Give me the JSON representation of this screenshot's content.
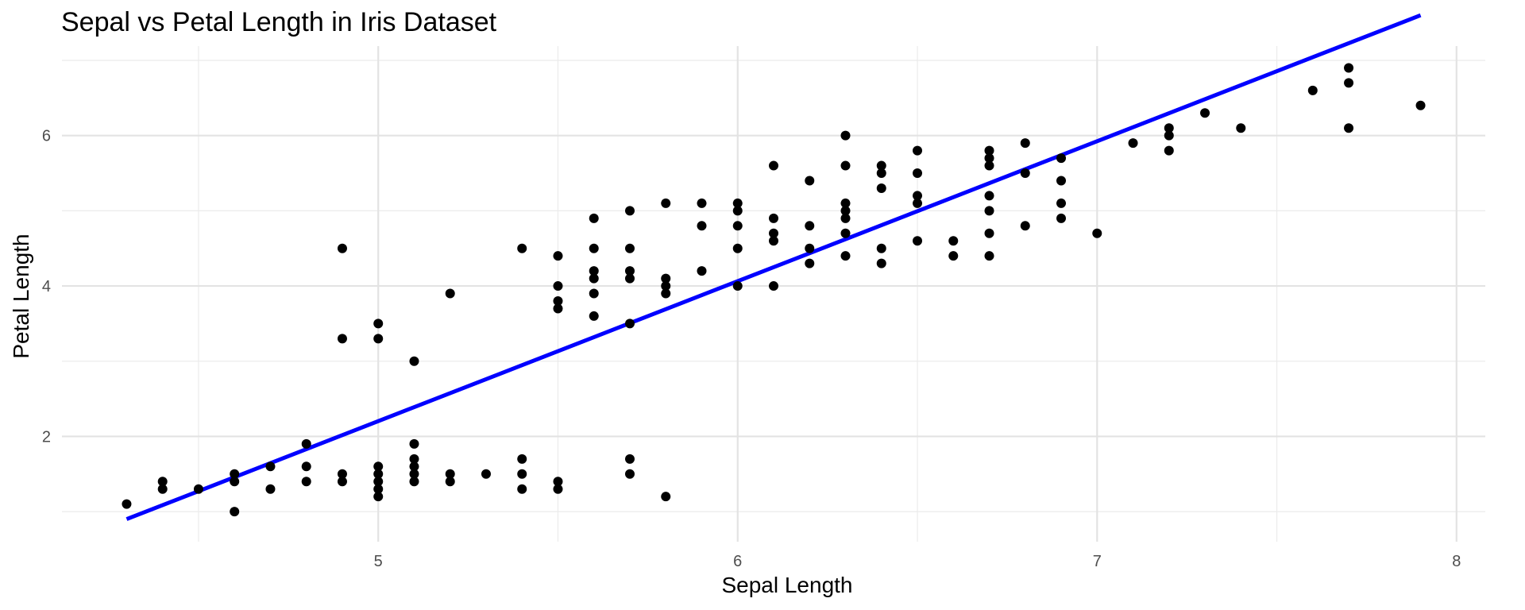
{
  "chart_data": {
    "type": "scatter",
    "title": "Sepal vs Petal Length in Iris Dataset",
    "xlabel": "Sepal Length",
    "ylabel": "Petal Length",
    "xlim": [
      4.12,
      8.08
    ],
    "ylim": [
      0.6,
      7.19
    ],
    "x_ticks": [
      5,
      6,
      7,
      8
    ],
    "x_minor_ticks": [
      4.5,
      5.5,
      6.5,
      7.5
    ],
    "y_ticks": [
      2,
      4,
      6
    ],
    "y_minor_ticks": [
      1,
      3,
      5,
      7
    ],
    "grid": true,
    "point_color": "#000000",
    "fit_line_color": "#0000ff",
    "fit_line": {
      "x": [
        4.3,
        7.9
      ],
      "y": [
        0.9,
        7.6
      ]
    },
    "points": [
      [
        4.3,
        1.1
      ],
      [
        4.4,
        1.4
      ],
      [
        4.4,
        1.3
      ],
      [
        4.5,
        1.3
      ],
      [
        4.6,
        1.5
      ],
      [
        4.6,
        1.4
      ],
      [
        4.6,
        1.0
      ],
      [
        4.7,
        1.6
      ],
      [
        4.7,
        1.3
      ],
      [
        4.8,
        1.9
      ],
      [
        4.8,
        1.6
      ],
      [
        4.8,
        1.4
      ],
      [
        4.9,
        4.5
      ],
      [
        4.9,
        3.3
      ],
      [
        4.9,
        1.5
      ],
      [
        4.9,
        1.4
      ],
      [
        5.0,
        3.5
      ],
      [
        5.0,
        3.3
      ],
      [
        5.0,
        1.6
      ],
      [
        5.0,
        1.5
      ],
      [
        5.0,
        1.4
      ],
      [
        5.0,
        1.3
      ],
      [
        5.0,
        1.2
      ],
      [
        5.1,
        3.0
      ],
      [
        5.1,
        1.9
      ],
      [
        5.1,
        1.7
      ],
      [
        5.1,
        1.6
      ],
      [
        5.1,
        1.5
      ],
      [
        5.1,
        1.4
      ],
      [
        5.2,
        3.9
      ],
      [
        5.2,
        1.5
      ],
      [
        5.2,
        1.4
      ],
      [
        5.3,
        1.5
      ],
      [
        5.4,
        4.5
      ],
      [
        5.4,
        1.7
      ],
      [
        5.4,
        1.5
      ],
      [
        5.4,
        1.3
      ],
      [
        5.5,
        4.4
      ],
      [
        5.5,
        4.0
      ],
      [
        5.5,
        3.8
      ],
      [
        5.5,
        3.7
      ],
      [
        5.5,
        1.4
      ],
      [
        5.5,
        1.3
      ],
      [
        5.6,
        4.9
      ],
      [
        5.6,
        4.5
      ],
      [
        5.6,
        4.2
      ],
      [
        5.6,
        4.1
      ],
      [
        5.6,
        3.9
      ],
      [
        5.6,
        3.6
      ],
      [
        5.7,
        5.0
      ],
      [
        5.7,
        4.5
      ],
      [
        5.7,
        4.2
      ],
      [
        5.7,
        4.1
      ],
      [
        5.7,
        3.5
      ],
      [
        5.7,
        1.7
      ],
      [
        5.7,
        1.5
      ],
      [
        5.8,
        5.1
      ],
      [
        5.8,
        4.1
      ],
      [
        5.8,
        4.0
      ],
      [
        5.8,
        3.9
      ],
      [
        5.8,
        1.2
      ],
      [
        5.9,
        5.1
      ],
      [
        5.9,
        4.8
      ],
      [
        5.9,
        4.2
      ],
      [
        6.0,
        5.1
      ],
      [
        6.0,
        5.0
      ],
      [
        6.0,
        4.8
      ],
      [
        6.0,
        4.5
      ],
      [
        6.0,
        4.0
      ],
      [
        6.1,
        5.6
      ],
      [
        6.1,
        4.9
      ],
      [
        6.1,
        4.7
      ],
      [
        6.1,
        4.6
      ],
      [
        6.1,
        4.0
      ],
      [
        6.2,
        5.4
      ],
      [
        6.2,
        4.8
      ],
      [
        6.2,
        4.5
      ],
      [
        6.2,
        4.3
      ],
      [
        6.3,
        6.0
      ],
      [
        6.3,
        5.6
      ],
      [
        6.3,
        5.1
      ],
      [
        6.3,
        5.0
      ],
      [
        6.3,
        4.9
      ],
      [
        6.3,
        4.7
      ],
      [
        6.3,
        4.4
      ],
      [
        6.4,
        5.6
      ],
      [
        6.4,
        5.5
      ],
      [
        6.4,
        5.3
      ],
      [
        6.4,
        4.5
      ],
      [
        6.4,
        4.3
      ],
      [
        6.5,
        5.8
      ],
      [
        6.5,
        5.5
      ],
      [
        6.5,
        5.2
      ],
      [
        6.5,
        5.1
      ],
      [
        6.5,
        4.6
      ],
      [
        6.6,
        4.6
      ],
      [
        6.6,
        4.4
      ],
      [
        6.7,
        5.8
      ],
      [
        6.7,
        5.7
      ],
      [
        6.7,
        5.6
      ],
      [
        6.7,
        5.2
      ],
      [
        6.7,
        5.0
      ],
      [
        6.7,
        4.7
      ],
      [
        6.7,
        4.4
      ],
      [
        6.8,
        5.9
      ],
      [
        6.8,
        5.5
      ],
      [
        6.8,
        4.8
      ],
      [
        6.9,
        5.7
      ],
      [
        6.9,
        5.4
      ],
      [
        6.9,
        5.1
      ],
      [
        6.9,
        4.9
      ],
      [
        7.0,
        4.7
      ],
      [
        7.1,
        5.9
      ],
      [
        7.2,
        6.1
      ],
      [
        7.2,
        6.0
      ],
      [
        7.2,
        5.8
      ],
      [
        7.3,
        6.3
      ],
      [
        7.4,
        6.1
      ],
      [
        7.6,
        6.6
      ],
      [
        7.7,
        6.9
      ],
      [
        7.7,
        6.7
      ],
      [
        7.7,
        6.1
      ],
      [
        7.9,
        6.4
      ]
    ]
  }
}
